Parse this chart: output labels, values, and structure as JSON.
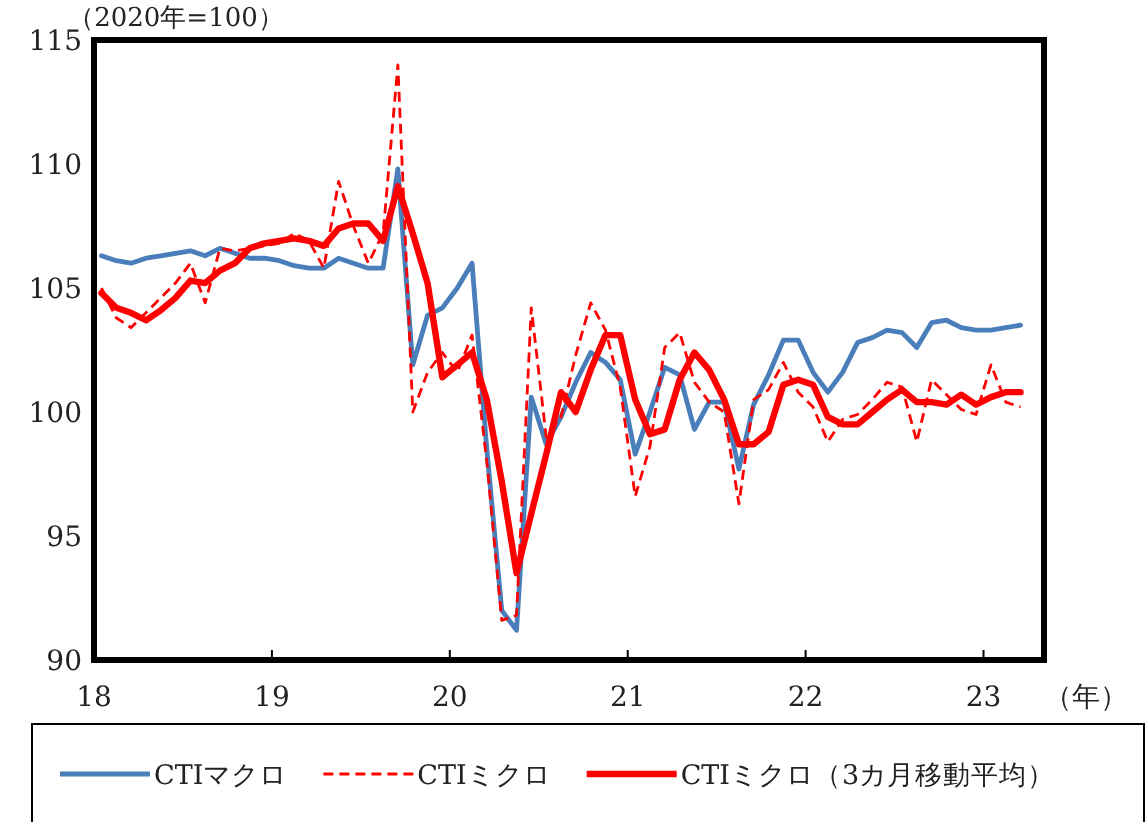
{
  "chart_data": {
    "type": "line",
    "ylabel": "（2020年=100）",
    "xlabel": "（年）",
    "xlim": [
      18,
      23.34
    ],
    "ylim": [
      90,
      115
    ],
    "xticks": [
      18,
      19,
      20,
      21,
      22,
      23
    ],
    "yticks": [
      90,
      95,
      100,
      105,
      110,
      115
    ],
    "x": [
      18.042,
      18.125,
      18.208,
      18.292,
      18.375,
      18.458,
      18.542,
      18.625,
      18.708,
      18.792,
      18.875,
      18.958,
      19.042,
      19.125,
      19.208,
      19.292,
      19.375,
      19.458,
      19.542,
      19.625,
      19.708,
      19.792,
      19.875,
      19.958,
      20.042,
      20.125,
      20.208,
      20.292,
      20.375,
      20.458,
      20.542,
      20.625,
      20.708,
      20.792,
      20.875,
      20.958,
      21.042,
      21.125,
      21.208,
      21.292,
      21.375,
      21.458,
      21.542,
      21.625,
      21.708,
      21.792,
      21.875,
      21.958,
      22.042,
      22.125,
      22.208,
      22.292,
      22.375,
      22.458,
      22.542,
      22.625,
      22.708,
      22.792,
      22.875,
      22.958,
      23.042,
      23.125,
      23.208
    ],
    "series": [
      {
        "name": "CTIマクロ",
        "color": "#4a7ebb",
        "line_style": "solid",
        "values": [
          106.3,
          106.1,
          106.0,
          106.2,
          106.3,
          106.4,
          106.5,
          106.3,
          106.6,
          106.4,
          106.2,
          106.2,
          106.1,
          105.9,
          105.8,
          105.8,
          106.2,
          106.0,
          105.8,
          105.8,
          109.8,
          101.9,
          103.9,
          104.2,
          105.0,
          106.0,
          98.5,
          92.0,
          91.2,
          100.6,
          98.7,
          99.8,
          101.2,
          102.4,
          102.0,
          101.3,
          98.3,
          100.0,
          101.8,
          101.5,
          99.3,
          100.4,
          100.4,
          97.7,
          100.3,
          101.5,
          102.9,
          102.9,
          101.6,
          100.8,
          101.6,
          102.8,
          103.0,
          103.3,
          103.2,
          102.6,
          103.6,
          103.7,
          103.4,
          103.3,
          103.3,
          103.4,
          103.5
        ]
      },
      {
        "name": "CTIミクロ",
        "color": "#ff0000",
        "line_style": "dashed",
        "values": [
          105.0,
          103.8,
          103.4,
          104.0,
          104.6,
          105.2,
          106.0,
          104.4,
          106.6,
          106.5,
          106.6,
          106.7,
          106.8,
          107.2,
          106.9,
          105.8,
          109.3,
          107.5,
          106.0,
          107.2,
          114.0,
          100.0,
          101.6,
          102.4,
          101.6,
          103.1,
          98.0,
          91.6,
          91.8,
          104.2,
          99.0,
          99.8,
          102.3,
          104.4,
          103.3,
          101.0,
          96.6,
          98.6,
          102.6,
          103.2,
          101.2,
          100.4,
          100.0,
          96.3,
          100.5,
          100.9,
          102.0,
          100.8,
          100.2,
          98.8,
          99.7,
          99.9,
          100.5,
          101.2,
          101.0,
          98.8,
          101.3,
          100.7,
          100.1,
          99.9,
          101.9,
          100.4,
          100.2
        ]
      },
      {
        "name": "CTIミクロ（3カ月移動平均）",
        "color": "#ff0000",
        "line_style": "solid",
        "values": [
          104.8,
          104.2,
          104.0,
          103.7,
          104.1,
          104.6,
          105.3,
          105.2,
          105.7,
          106.0,
          106.6,
          106.8,
          106.9,
          107.0,
          106.9,
          106.7,
          107.4,
          107.6,
          107.6,
          106.9,
          109.1,
          107.2,
          105.2,
          101.4,
          101.9,
          102.4,
          100.5,
          97.2,
          93.5,
          95.9,
          98.3,
          100.8,
          100.0,
          101.7,
          103.1,
          103.1,
          100.5,
          99.1,
          99.3,
          101.3,
          102.4,
          101.7,
          100.5,
          98.7,
          98.7,
          99.2,
          101.1,
          101.3,
          101.1,
          99.8,
          99.5,
          99.5,
          100.0,
          100.5,
          100.9,
          100.4,
          100.4,
          100.3,
          100.7,
          100.3,
          100.6,
          100.8,
          100.8
        ]
      }
    ],
    "legend": "bottom",
    "grid": false
  }
}
